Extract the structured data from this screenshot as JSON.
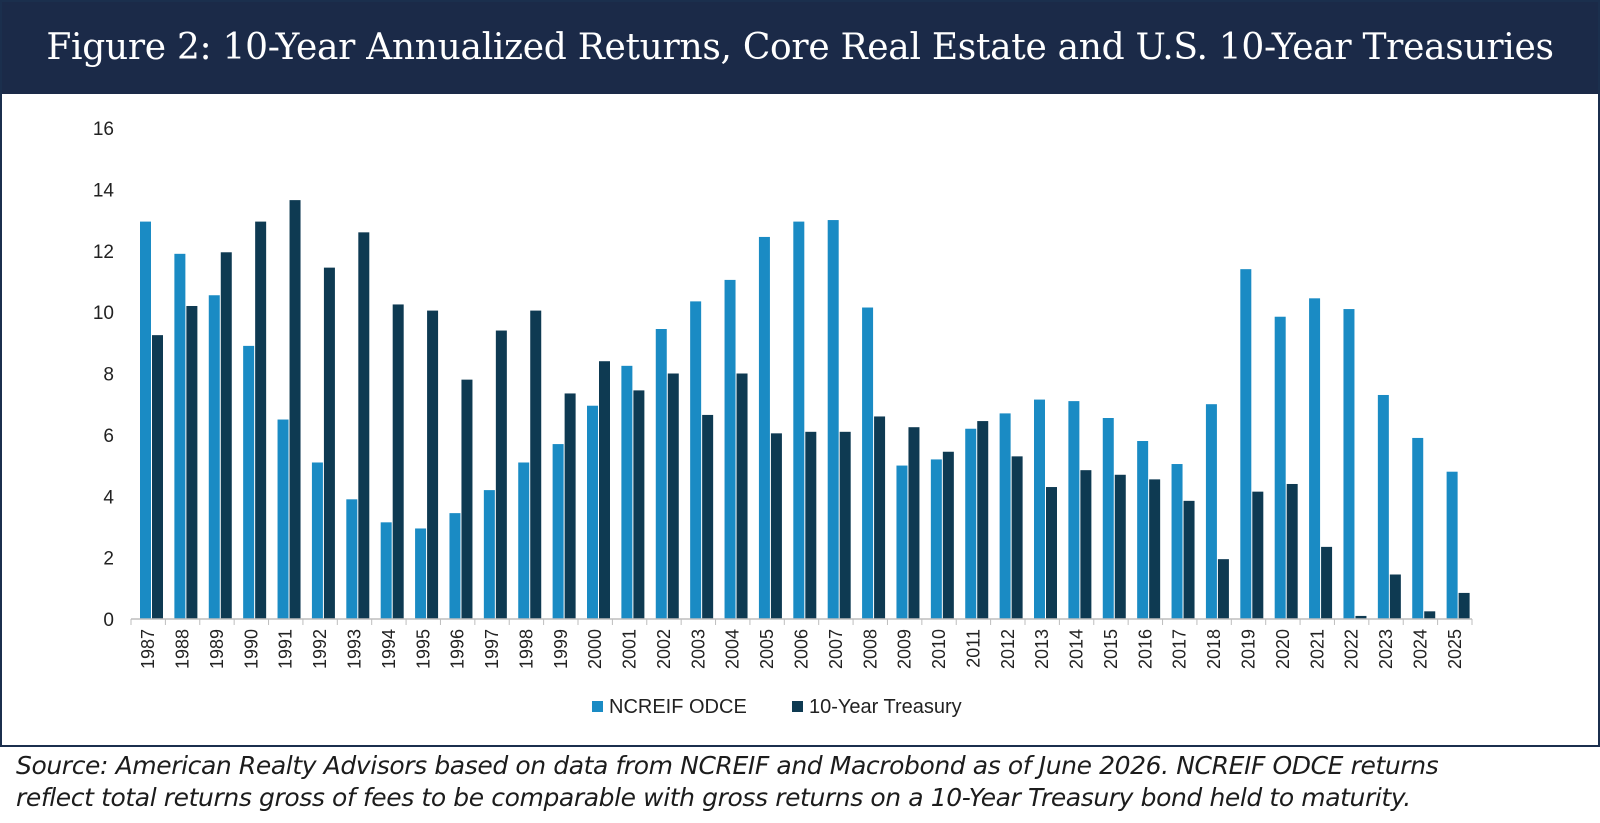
{
  "figure": {
    "title": "Figure 2: 10-Year Annualized Returns, Core Real Estate and U.S. 10-Year Treasuries",
    "caption_line1": "Source: American Realty Advisors based on data from NCREIF and Macrobond as of June 2026. NCREIF ODCE returns",
    "caption_line2": "reflect total returns gross of fees to be comparable with gross returns on a 10-Year Treasury bond held to maturity."
  },
  "chart_data": {
    "type": "bar",
    "title": "",
    "xlabel": "",
    "ylabel": "",
    "ylim": [
      0,
      16
    ],
    "yticks": [
      0,
      2,
      4,
      6,
      8,
      10,
      12,
      14,
      16
    ],
    "grid": false,
    "legend_position": "bottom",
    "categories": [
      "1987",
      "1988",
      "1989",
      "1990",
      "1991",
      "1992",
      "1993",
      "1994",
      "1995",
      "1996",
      "1997",
      "1998",
      "1999",
      "2000",
      "2001",
      "2002",
      "2003",
      "2004",
      "2005",
      "2006",
      "2007",
      "2008",
      "2009",
      "2010",
      "2011",
      "2012",
      "2013",
      "2014",
      "2015",
      "2016",
      "2017",
      "2018",
      "2019",
      "2020",
      "2021",
      "2022",
      "2023",
      "2024",
      "2025"
    ],
    "series": [
      {
        "name": "NCREIF ODCE",
        "color": "#1a8bc4",
        "values": [
          12.95,
          11.9,
          10.55,
          8.9,
          6.5,
          5.1,
          3.9,
          3.15,
          2.95,
          3.45,
          4.2,
          5.1,
          5.7,
          6.95,
          8.25,
          9.45,
          10.35,
          11.05,
          12.45,
          12.95,
          13.0,
          10.15,
          5.0,
          5.2,
          6.2,
          6.7,
          7.15,
          7.1,
          6.55,
          5.8,
          5.05,
          7.0,
          11.4,
          9.85,
          10.45,
          10.1,
          7.3,
          5.9,
          4.8
        ]
      },
      {
        "name": "10-Year Treasury",
        "color": "#0e3a52",
        "values": [
          9.25,
          10.2,
          11.95,
          12.95,
          13.65,
          11.45,
          12.6,
          10.25,
          10.05,
          7.8,
          9.4,
          10.05,
          7.35,
          8.4,
          7.45,
          8.0,
          6.65,
          8.0,
          6.05,
          6.1,
          6.1,
          6.6,
          6.25,
          5.45,
          6.45,
          5.3,
          4.3,
          4.85,
          4.7,
          4.55,
          3.85,
          1.95,
          4.15,
          4.4,
          2.35,
          0.1,
          1.45,
          0.25,
          0.85
        ]
      }
    ]
  }
}
